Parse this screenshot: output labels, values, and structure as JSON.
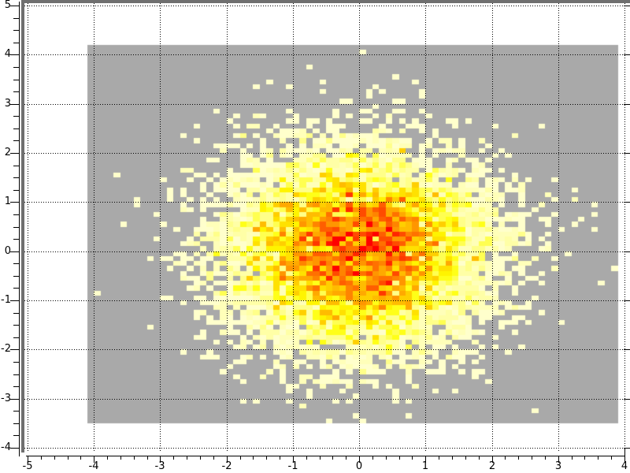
{
  "chart_data": {
    "type": "heatmap",
    "title": "",
    "xlabel": "",
    "ylabel": "",
    "x_axis": {
      "min": -5,
      "max": 4,
      "major_tick_step": 1,
      "minor_tick_step": 0.2,
      "tick_labels": [
        "-5",
        "-4",
        "-3",
        "-2",
        "-1",
        "0",
        "1",
        "2",
        "3",
        "4"
      ]
    },
    "y_axis": {
      "min": -4,
      "max": 5,
      "major_tick_step": 1,
      "minor_tick_step": 0.25,
      "tick_labels": [
        "5",
        "4",
        "3",
        "2",
        "1",
        "0",
        "-1",
        "-2",
        "-3",
        "-4"
      ]
    },
    "grid": {
      "show": true,
      "style": "dotted",
      "color": "#000000",
      "at": "integers"
    },
    "legend": null,
    "histogram": {
      "description": "2D histogram of gaussian-distributed samples; empty bins gray, occupied bins colored by count",
      "x_range": [
        -4.1,
        3.9
      ],
      "y_range": [
        -3.5,
        4.2
      ],
      "bin_size": 0.1,
      "bins_x": 80,
      "bins_y": 77,
      "distribution": "gaussian",
      "mean": [
        0,
        0
      ],
      "sigma": [
        1,
        1
      ],
      "n_samples": 10000,
      "seed": 1337,
      "empty_bin_color": "#a9a9a9",
      "colormap_stops": [
        "#ffffcc",
        "#ffff99",
        "#ffff00",
        "#ffcc00",
        "#ff9900",
        "#ff6600",
        "#ff3300",
        "#ff0000"
      ],
      "colormap_max_count": 20
    }
  },
  "frame": {
    "bevel_border_color": "#6f6f6f",
    "plot_background": "#ffffff",
    "axis_color": "#000000"
  }
}
